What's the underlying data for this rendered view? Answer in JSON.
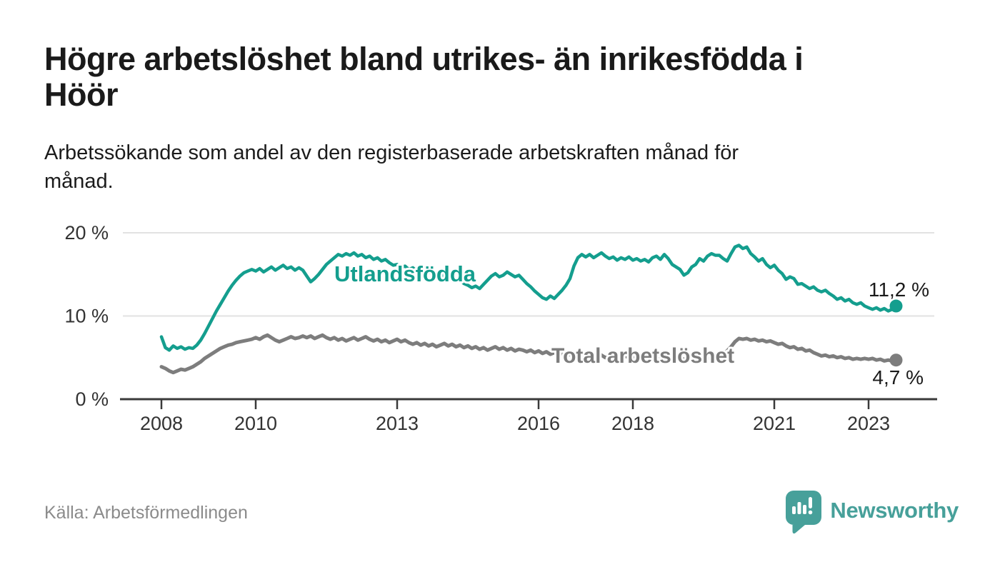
{
  "title": "Högre arbetslöshet bland utrikes- än inrikesfödda i Höör",
  "title_lines": [
    "Högre arbetslöshet bland utrikes- än inrikesfödda i",
    "Höör"
  ],
  "subtitle": "Arbetssökande som andel av den registerbaserade arbetskraften månad för månad.",
  "subtitle_lines": [
    "Arbetssökande som andel av den registerbaserade arbetskraften månad för",
    "månad."
  ],
  "source": "Källa: Arbetsförmedlingen",
  "brand": {
    "name": "Newsworthy",
    "icon": "speech-bubble-bar-chart",
    "color": "#47a09a"
  },
  "colors": {
    "accent_teal": "#149e8e",
    "line_gray": "#7d7d7d",
    "axis": "#3a3a3a",
    "gridline": "#e2e2e2",
    "label_text": "#1a1a1a",
    "tick_text": "#333333"
  },
  "chart_data": {
    "type": "line",
    "title": "Högre arbetslöshet bland utrikes- än inrikesfödda i Höör",
    "xlabel": "",
    "ylabel": "Arbetssökande som andel av den registerbaserade arbetskraften",
    "x_start_year": 2008,
    "x_interval_months": 1,
    "x_end": "2023-08",
    "xlim": [
      2007.2,
      2024.4
    ],
    "ylim": [
      0,
      21.5
    ],
    "grid": "horizontal",
    "legend_position": "inline-labels",
    "x_ticks": [
      2008,
      2010,
      2013,
      2016,
      2018,
      2021,
      2023
    ],
    "y_ticks": [
      {
        "value": 0,
        "label": "0 %"
      },
      {
        "value": 10,
        "label": "10 %"
      },
      {
        "value": 20,
        "label": "20 %"
      }
    ],
    "series": [
      {
        "name": "Utlandsfödda",
        "color": "#149e8e",
        "end_label": "11,2 %",
        "end_value": 11.2,
        "values": [
          7.5,
          6.2,
          5.9,
          6.4,
          6.1,
          6.3,
          6.0,
          6.2,
          6.1,
          6.5,
          7.1,
          7.9,
          8.8,
          9.7,
          10.6,
          11.4,
          12.2,
          13.0,
          13.7,
          14.3,
          14.8,
          15.2,
          15.4,
          15.6,
          15.4,
          15.7,
          15.3,
          15.6,
          15.9,
          15.5,
          15.8,
          16.1,
          15.7,
          15.9,
          15.5,
          15.8,
          15.5,
          14.8,
          14.1,
          14.5,
          15.0,
          15.6,
          16.2,
          16.6,
          17.0,
          17.4,
          17.2,
          17.5,
          17.3,
          17.6,
          17.2,
          17.4,
          17.0,
          17.2,
          16.8,
          17.0,
          16.6,
          16.8,
          16.4,
          16.1,
          16.2,
          15.8,
          16.0,
          15.6,
          15.8,
          15.4,
          15.6,
          15.2,
          15.4,
          15.0,
          15.2,
          14.8,
          14.9,
          14.5,
          14.7,
          14.2,
          14.4,
          13.9,
          13.7,
          13.4,
          13.6,
          13.3,
          13.8,
          14.3,
          14.8,
          15.1,
          14.7,
          14.9,
          15.3,
          15.0,
          14.7,
          14.9,
          14.4,
          13.9,
          13.5,
          13.0,
          12.6,
          12.2,
          12.0,
          12.4,
          12.1,
          12.6,
          13.1,
          13.7,
          14.5,
          16.0,
          17.0,
          17.4,
          17.1,
          17.4,
          17.0,
          17.3,
          17.6,
          17.2,
          16.9,
          17.1,
          16.7,
          17.0,
          16.8,
          17.1,
          16.7,
          16.9,
          16.6,
          16.8,
          16.5,
          17.0,
          17.2,
          16.8,
          17.4,
          16.9,
          16.2,
          15.9,
          15.6,
          14.9,
          15.2,
          15.9,
          16.2,
          16.9,
          16.6,
          17.2,
          17.5,
          17.3,
          17.3,
          16.9,
          16.6,
          17.5,
          18.3,
          18.5,
          18.1,
          18.3,
          17.5,
          17.1,
          16.6,
          16.9,
          16.2,
          15.8,
          16.1,
          15.5,
          15.1,
          14.4,
          14.7,
          14.5,
          13.8,
          13.9,
          13.6,
          13.3,
          13.5,
          13.1,
          12.9,
          13.1,
          12.7,
          12.4,
          12.0,
          12.2,
          11.8,
          12.0,
          11.6,
          11.4,
          11.6,
          11.2,
          11.0,
          10.8,
          11.0,
          10.7,
          10.9,
          10.6,
          10.8,
          11.2
        ]
      },
      {
        "name": "Total arbetslöshet",
        "color": "#7d7d7d",
        "end_label": "4,7 %",
        "end_value": 4.7,
        "values": [
          3.9,
          3.7,
          3.4,
          3.2,
          3.4,
          3.6,
          3.5,
          3.7,
          3.9,
          4.2,
          4.5,
          4.9,
          5.2,
          5.5,
          5.8,
          6.1,
          6.3,
          6.5,
          6.6,
          6.8,
          6.9,
          7.0,
          7.1,
          7.2,
          7.4,
          7.2,
          7.5,
          7.7,
          7.4,
          7.1,
          6.9,
          7.1,
          7.3,
          7.5,
          7.3,
          7.4,
          7.6,
          7.4,
          7.6,
          7.3,
          7.5,
          7.7,
          7.4,
          7.2,
          7.4,
          7.1,
          7.3,
          7.0,
          7.2,
          7.4,
          7.1,
          7.3,
          7.5,
          7.2,
          7.0,
          7.2,
          6.9,
          7.1,
          6.8,
          7.0,
          7.2,
          6.9,
          7.1,
          6.8,
          6.6,
          6.8,
          6.5,
          6.7,
          6.4,
          6.6,
          6.3,
          6.5,
          6.7,
          6.4,
          6.6,
          6.3,
          6.5,
          6.2,
          6.4,
          6.1,
          6.3,
          6.0,
          6.2,
          5.9,
          6.1,
          6.3,
          6.0,
          6.2,
          5.9,
          6.1,
          5.8,
          6.0,
          5.9,
          5.7,
          5.9,
          5.6,
          5.8,
          5.5,
          5.7,
          5.4,
          5.6,
          5.3,
          5.5,
          5.2,
          5.4,
          5.1,
          5.3,
          5.2,
          5.4,
          5.2,
          5.3,
          5.1,
          5.3,
          5.0,
          5.2,
          5.1,
          5.3,
          5.1,
          5.2,
          5.0,
          5.1,
          4.9,
          5.1,
          4.8,
          5.0,
          4.9,
          5.1,
          4.8,
          5.0,
          4.7,
          4.9,
          4.8,
          5.0,
          4.8,
          4.9,
          4.7,
          4.9,
          4.8,
          5.0,
          4.9,
          5.1,
          5.0,
          5.2,
          5.4,
          5.8,
          6.3,
          6.9,
          7.3,
          7.2,
          7.3,
          7.1,
          7.2,
          7.0,
          7.1,
          6.9,
          7.0,
          6.8,
          6.6,
          6.7,
          6.4,
          6.2,
          6.3,
          6.0,
          6.1,
          5.8,
          5.9,
          5.6,
          5.4,
          5.2,
          5.3,
          5.1,
          5.2,
          5.0,
          5.1,
          4.9,
          5.0,
          4.8,
          4.9,
          4.8,
          4.9,
          4.8,
          4.9,
          4.7,
          4.8,
          4.6,
          4.7,
          4.6,
          4.7
        ]
      }
    ]
  }
}
